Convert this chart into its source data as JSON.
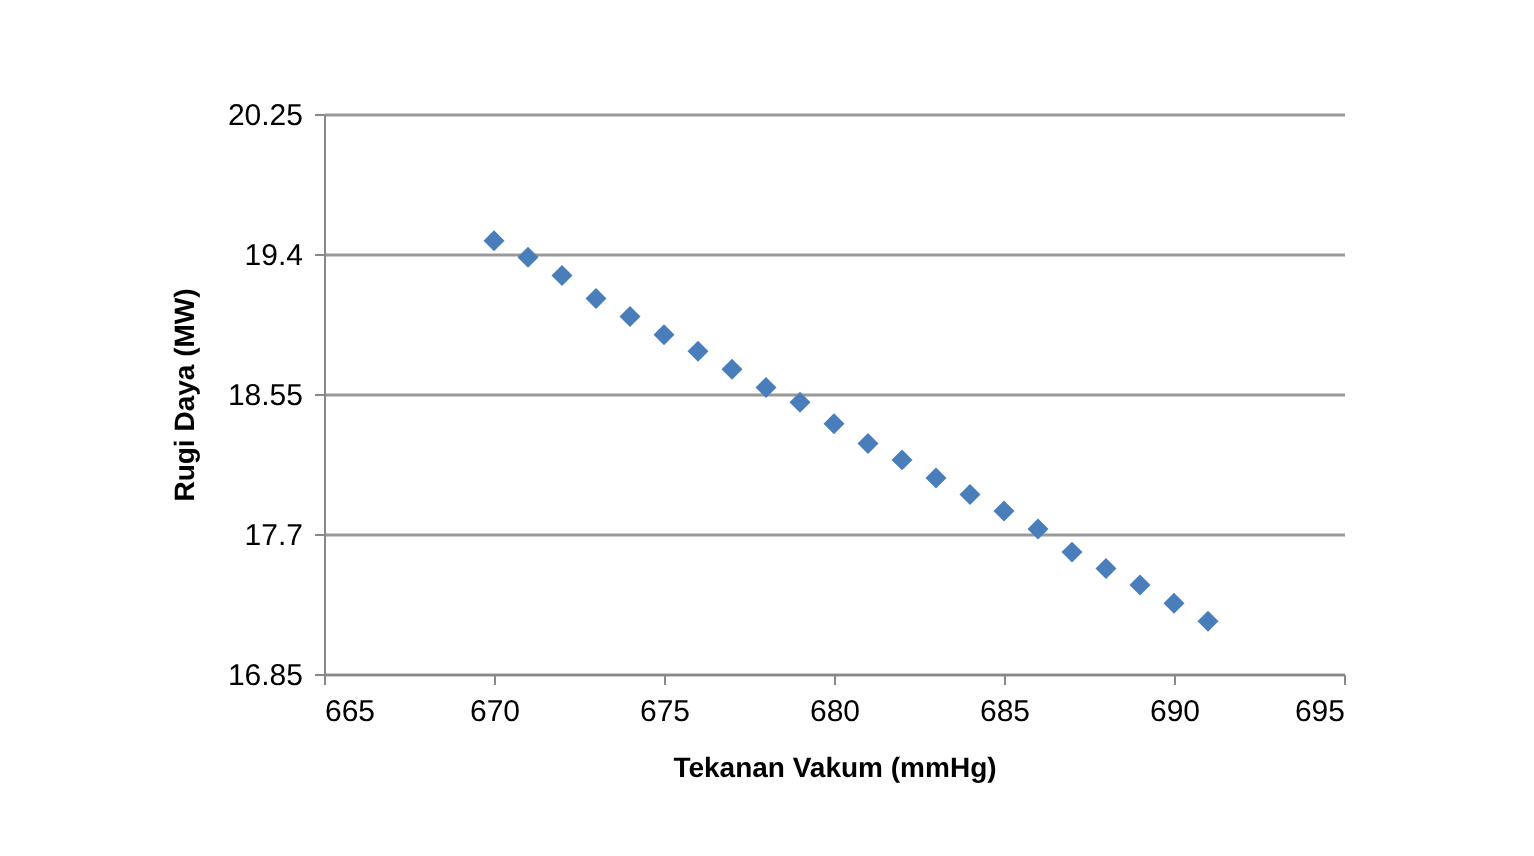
{
  "chart_data": {
    "type": "scatter",
    "xlabel": "Tekanan Vakum (mmHg)",
    "ylabel": "Rugi Daya (MW)",
    "x": [
      670,
      671,
      672,
      673,
      674,
      675,
      676,
      677,
      678,
      679,
      680,
      681,
      682,
      683,
      684,
      685,
      686,
      687,
      688,
      689,
      690,
      691
    ],
    "series": [
      {
        "color": "#4a7ebb",
        "values": [
          19.48,
          19.38,
          19.27,
          19.13,
          19.02,
          18.91,
          18.81,
          18.7,
          18.59,
          18.5,
          18.37,
          18.25,
          18.15,
          18.04,
          17.94,
          17.84,
          17.73,
          17.59,
          17.49,
          17.39,
          17.28,
          17.17
        ]
      }
    ],
    "xlim": [
      665,
      695
    ],
    "xticks": [
      665,
      670,
      675,
      680,
      685,
      690,
      695
    ],
    "ylim": [
      16.85,
      20.25
    ],
    "yticks": [
      16.85,
      17.7,
      18.55,
      19.4,
      20.25
    ],
    "grid": "y",
    "marker": "diamond"
  }
}
